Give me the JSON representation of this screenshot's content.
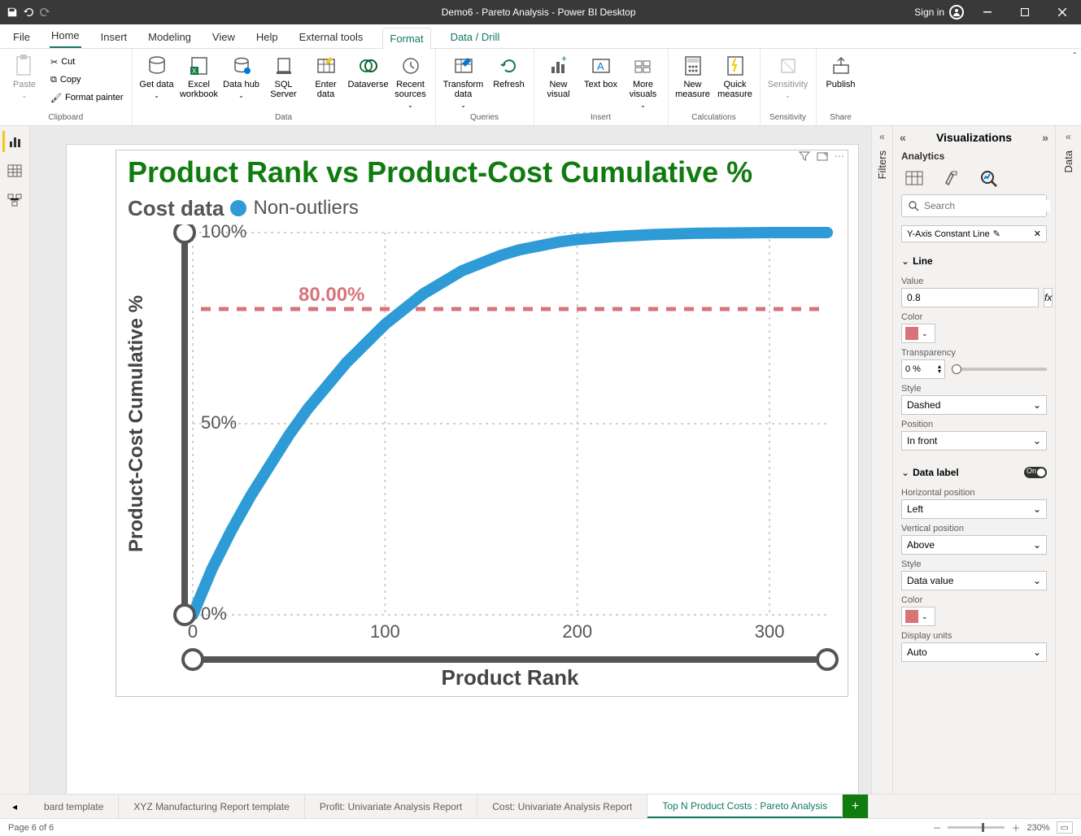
{
  "app": {
    "title": "Demo6 - Pareto Analysis - Power BI Desktop",
    "signin": "Sign in"
  },
  "menus": [
    "File",
    "Home",
    "Insert",
    "Modeling",
    "View",
    "Help",
    "External tools",
    "Format",
    "Data / Drill"
  ],
  "menu_active_home": "Home",
  "menu_context_active": "Format",
  "ribbon": {
    "clipboard": {
      "paste": "Paste",
      "cut": "Cut",
      "copy": "Copy",
      "formatpainter": "Format painter",
      "label": "Clipboard"
    },
    "data": {
      "getdata": "Get data",
      "excel": "Excel workbook",
      "datahub": "Data hub",
      "sql": "SQL Server",
      "enter": "Enter data",
      "dataverse": "Dataverse",
      "recent": "Recent sources",
      "label": "Data"
    },
    "queries": {
      "transform": "Transform data",
      "refresh": "Refresh",
      "label": "Queries"
    },
    "insert": {
      "visual": "New visual",
      "textbox": "Text box",
      "more": "More visuals",
      "label": "Insert"
    },
    "calc": {
      "measure": "New measure",
      "quick": "Quick measure",
      "label": "Calculations"
    },
    "sensitivity": {
      "btn": "Sensitivity",
      "label": "Sensitivity"
    },
    "share": {
      "publish": "Publish",
      "label": "Share"
    }
  },
  "chart": {
    "title": "Product Rank vs Product-Cost Cumulative %",
    "legend_title": "Cost data",
    "legend_series": "Non-outliers",
    "series_color": "#2e9bd6",
    "xlabel": "Product Rank",
    "ylabel": "Product-Cost Cumulative %",
    "xlim": [
      0,
      330
    ],
    "ylim": [
      0,
      1
    ],
    "xticks": [
      0,
      100,
      200,
      300
    ],
    "yticks": [
      0,
      0.5,
      1
    ],
    "ytick_labels": [
      "0%",
      "50%",
      "100%"
    ],
    "ref_line": {
      "value": 0.8,
      "label": "80.00%",
      "color": "#d9737a",
      "style": "dashed"
    },
    "grid_color": "#d0d0d0",
    "curve_points": [
      [
        0,
        0
      ],
      [
        10,
        0.12
      ],
      [
        20,
        0.22
      ],
      [
        30,
        0.31
      ],
      [
        40,
        0.39
      ],
      [
        50,
        0.47
      ],
      [
        60,
        0.54
      ],
      [
        70,
        0.6
      ],
      [
        80,
        0.66
      ],
      [
        90,
        0.71
      ],
      [
        100,
        0.76
      ],
      [
        110,
        0.8
      ],
      [
        120,
        0.84
      ],
      [
        130,
        0.87
      ],
      [
        140,
        0.9
      ],
      [
        150,
        0.92
      ],
      [
        160,
        0.94
      ],
      [
        170,
        0.955
      ],
      [
        180,
        0.965
      ],
      [
        190,
        0.975
      ],
      [
        200,
        0.982
      ],
      [
        220,
        0.99
      ],
      [
        240,
        0.995
      ],
      [
        260,
        0.998
      ],
      [
        280,
        0.999
      ],
      [
        300,
        1.0
      ],
      [
        330,
        1.0
      ]
    ],
    "line_width": 14,
    "axis_color": "#555555",
    "axis_width": 8,
    "cap_radius": 12,
    "background": "#ffffff"
  },
  "viz_pane": {
    "title": "Visualizations",
    "subtitle": "Analytics",
    "search_placeholder": "Search",
    "chip": "Y-Axis Constant Line",
    "section_line": "Line",
    "value_label": "Value",
    "value": "0.8",
    "color_label": "Color",
    "color": "#d9737a",
    "transparency_label": "Transparency",
    "transparency": "0 %",
    "style_label": "Style",
    "style": "Dashed",
    "position_label": "Position",
    "position": "In front",
    "section_datalabel": "Data label",
    "datalabel_on": "On",
    "horiz_label": "Horizontal position",
    "horiz": "Left",
    "vert_label": "Vertical position",
    "vert": "Above",
    "dl_style_label": "Style",
    "dl_style": "Data value",
    "dl_color_label": "Color",
    "dl_color": "#d9737a",
    "units_label": "Display units",
    "units": "Auto"
  },
  "collapsed_panes": {
    "filters": "Filters",
    "data": "Data"
  },
  "pagetabs": {
    "left_partial": "bard template",
    "t1": "XYZ Manufacturing Report template",
    "t2": "Profit: Univariate Analysis Report",
    "t3": "Cost: Univariate Analysis Report",
    "t4": "Top N Product Costs : Pareto Analysis"
  },
  "status": {
    "page": "Page 6 of 6",
    "zoom": "230%"
  }
}
